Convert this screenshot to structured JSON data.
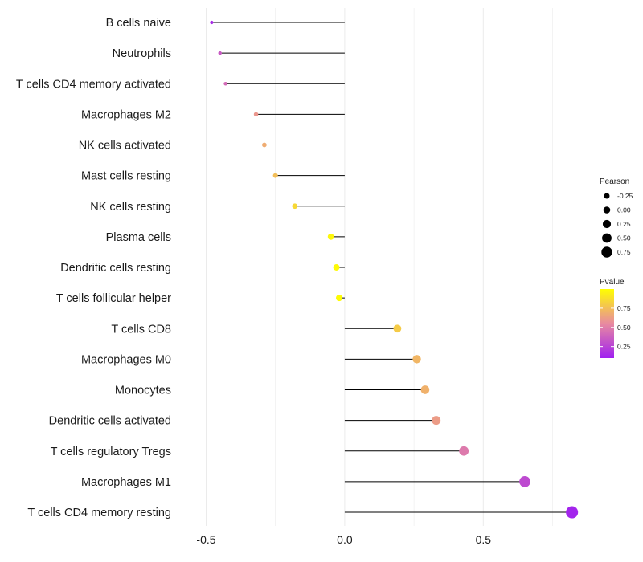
{
  "chart_data": {
    "type": "lollipop",
    "title": "",
    "xlabel": "",
    "ylabel": "",
    "xlim": [
      -0.6,
      0.85
    ],
    "xticks": [
      {
        "value": -0.5,
        "label": "-0.5"
      },
      {
        "value": 0.0,
        "label": "0.0"
      },
      {
        "value": 0.5,
        "label": "0.5"
      }
    ],
    "grid": "vertical",
    "categories": [
      "B cells naive",
      "Neutrophils",
      "T cells CD4 memory activated",
      "Macrophages M2",
      "NK cells activated",
      "Mast cells resting",
      "NK cells resting",
      "Plasma cells",
      "Dendritic cells resting",
      "T cells follicular helper",
      "T cells CD8",
      "Macrophages M0",
      "Monocytes",
      "Dendritic cells activated",
      "T cells regulatory  Tregs",
      "Macrophages M1",
      "T cells CD4 memory resting"
    ],
    "values": [
      -0.48,
      -0.45,
      -0.43,
      -0.32,
      -0.29,
      -0.25,
      -0.18,
      -0.05,
      -0.03,
      -0.02,
      0.19,
      0.26,
      0.29,
      0.33,
      0.43,
      0.65,
      0.82
    ],
    "pvalues": [
      0.15,
      0.35,
      0.42,
      0.6,
      0.68,
      0.75,
      0.85,
      0.97,
      0.98,
      0.99,
      0.8,
      0.72,
      0.7,
      0.62,
      0.48,
      0.28,
      0.12
    ],
    "legend_size": {
      "title": "Pearson",
      "entries": [
        {
          "label": "-0.25",
          "value": -0.25
        },
        {
          "label": "0.00",
          "value": 0.0
        },
        {
          "label": "0.25",
          "value": 0.25
        },
        {
          "label": "0.50",
          "value": 0.5
        },
        {
          "label": "0.75",
          "value": 0.75
        }
      ]
    },
    "legend_color": {
      "title": "Pvalue",
      "range": [
        0.1,
        1.0
      ],
      "entries": [
        {
          "label": "0.75",
          "value": 0.75
        },
        {
          "label": "0.50",
          "value": 0.5
        },
        {
          "label": "0.25",
          "value": 0.25
        }
      ]
    },
    "legend_position": "right",
    "colors": {
      "low": "#a020f0",
      "mid": "#e88aa0",
      "high": "#ffff00",
      "stem": "#000000",
      "grid": "#ebebeb",
      "legend_dot": "#000000"
    }
  }
}
